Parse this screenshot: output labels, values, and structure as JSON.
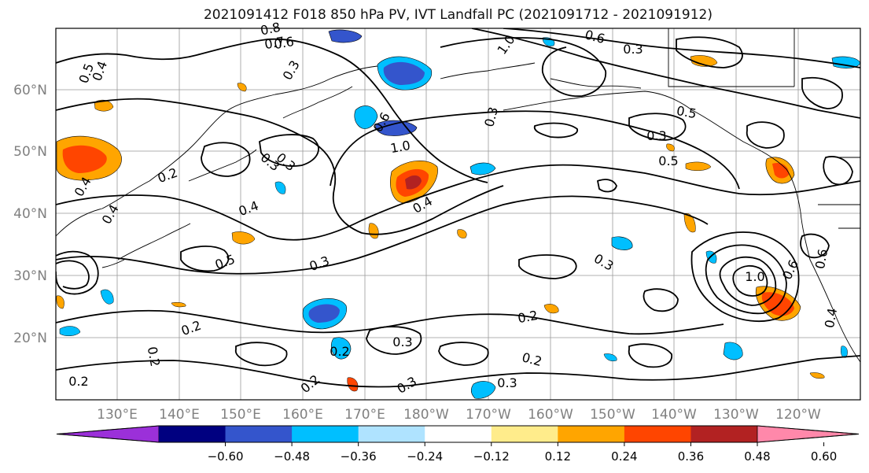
{
  "title": "2021091412 F018 850 hPa PV, IVT Landfall PC (2021091712 - 2021091912)",
  "map": {
    "lat_labels": [
      "60°N",
      "50°N",
      "40°N",
      "30°N",
      "20°N"
    ],
    "lon_labels": [
      "130°E",
      "140°E",
      "150°E",
      "160°E",
      "170°E",
      "180°W",
      "170°W",
      "160°W",
      "150°W",
      "140°W",
      "130°W",
      "120°W"
    ],
    "contour_labels": [
      "0.8",
      "0.7",
      "0.6",
      "0.5",
      "0.4",
      "0.3",
      "0.6",
      "0.3",
      "1.0",
      "0.6",
      "0.3",
      "0.3",
      "1.0",
      "0.4",
      "0.3",
      "0.5",
      "0.5",
      "0.2",
      "0.4",
      "0.3",
      "0.4",
      "0.5",
      "0.3",
      "0.4",
      "0.3",
      "0.2",
      "0.2",
      "0.3",
      "0.2",
      "0.2",
      "0.2",
      "0.2",
      "0.3",
      "1.0",
      "0.6",
      "0.4",
      "0.6",
      "0.3",
      "0.2"
    ]
  },
  "colorbar": {
    "colors": [
      "#9b30d9",
      "#000080",
      "#3455cc",
      "#00bfff",
      "#afe3ff",
      "#ffffff",
      "#ffec8b",
      "#ffa500",
      "#ff4500",
      "#b22222",
      "#ff88aa"
    ],
    "tick_labels": [
      "−0.60",
      "−0.48",
      "−0.36",
      "−0.24",
      "−0.12",
      "0.12",
      "0.24",
      "0.36",
      "0.48",
      "0.60"
    ]
  }
}
